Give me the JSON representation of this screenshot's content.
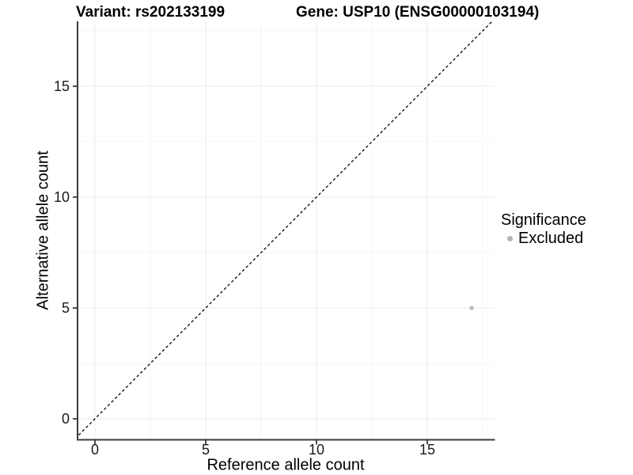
{
  "title": {
    "variant": "Variant: rs202133199",
    "gene": "Gene: USP10 (ENSG00000103194)"
  },
  "axes": {
    "x_label": "Reference allele count",
    "y_label": "Alternative allele count"
  },
  "legend": {
    "title": "Significance",
    "items": [
      {
        "label": "Excluded",
        "color": "#b5b5b5"
      }
    ]
  },
  "chart_data": {
    "type": "scatter",
    "title": "Variant: rs202133199   Gene: USP10 (ENSG00000103194)",
    "xlabel": "Reference allele count",
    "ylabel": "Alternative allele count",
    "x_ticks": [
      0,
      5,
      10,
      15
    ],
    "y_ticks": [
      0,
      5,
      10,
      15
    ],
    "xlim": [
      -0.9,
      18.1
    ],
    "ylim": [
      -0.95,
      17.95
    ],
    "grid": "major+minor",
    "legend_position": "right",
    "series": [
      {
        "name": "Excluded",
        "color": "#b9b9b9",
        "points": [
          {
            "x": 17,
            "y": 5
          }
        ]
      }
    ],
    "reference_line": {
      "kind": "identity",
      "slope": 1,
      "intercept": 0,
      "style": "dashed",
      "color": "#111111"
    },
    "colors": {
      "axis_line": "#3c3c3c",
      "tick_label": "#1a1a1a",
      "grid_major": "#ebebeb",
      "grid_minor": "#f5f5f5",
      "background": "#ffffff"
    }
  }
}
